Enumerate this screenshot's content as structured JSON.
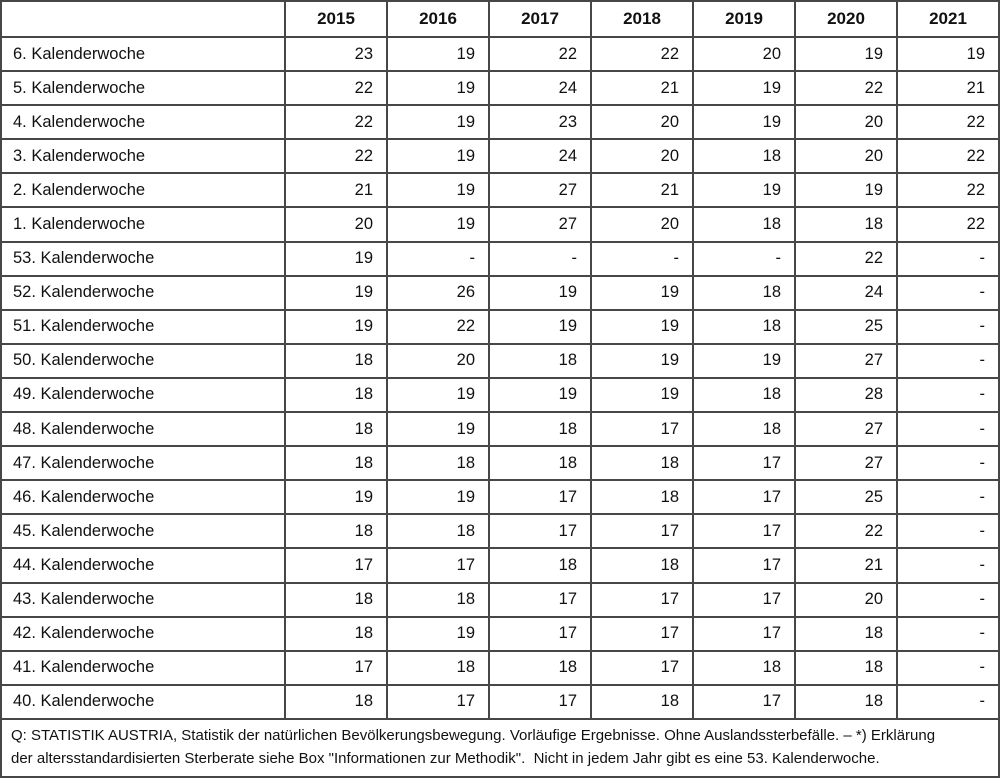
{
  "chart_data": {
    "type": "table",
    "title": "",
    "corner_label": "",
    "columns": [
      "2015",
      "2016",
      "2017",
      "2018",
      "2019",
      "2020",
      "2021"
    ],
    "rows": [
      {
        "label": "6. Kalenderwoche",
        "values": [
          "23",
          "19",
          "22",
          "22",
          "20",
          "19",
          "19"
        ]
      },
      {
        "label": "5. Kalenderwoche",
        "values": [
          "22",
          "19",
          "24",
          "21",
          "19",
          "22",
          "21"
        ]
      },
      {
        "label": "4. Kalenderwoche",
        "values": [
          "22",
          "19",
          "23",
          "20",
          "19",
          "20",
          "22"
        ]
      },
      {
        "label": "3. Kalenderwoche",
        "values": [
          "22",
          "19",
          "24",
          "20",
          "18",
          "20",
          "22"
        ]
      },
      {
        "label": "2. Kalenderwoche",
        "values": [
          "21",
          "19",
          "27",
          "21",
          "19",
          "19",
          "22"
        ]
      },
      {
        "label": "1. Kalenderwoche",
        "values": [
          "20",
          "19",
          "27",
          "20",
          "18",
          "18",
          "22"
        ]
      },
      {
        "label": "53. Kalenderwoche",
        "values": [
          "19",
          "-",
          "-",
          "-",
          "-",
          "22",
          "-"
        ]
      },
      {
        "label": "52. Kalenderwoche",
        "values": [
          "19",
          "26",
          "19",
          "19",
          "18",
          "24",
          "-"
        ]
      },
      {
        "label": "51. Kalenderwoche",
        "values": [
          "19",
          "22",
          "19",
          "19",
          "18",
          "25",
          "-"
        ]
      },
      {
        "label": "50. Kalenderwoche",
        "values": [
          "18",
          "20",
          "18",
          "19",
          "19",
          "27",
          "-"
        ]
      },
      {
        "label": "49. Kalenderwoche",
        "values": [
          "18",
          "19",
          "19",
          "19",
          "18",
          "28",
          "-"
        ]
      },
      {
        "label": "48. Kalenderwoche",
        "values": [
          "18",
          "19",
          "18",
          "17",
          "18",
          "27",
          "-"
        ]
      },
      {
        "label": "47. Kalenderwoche",
        "values": [
          "18",
          "18",
          "18",
          "18",
          "17",
          "27",
          "-"
        ]
      },
      {
        "label": "46. Kalenderwoche",
        "values": [
          "19",
          "19",
          "17",
          "18",
          "17",
          "25",
          "-"
        ]
      },
      {
        "label": "45. Kalenderwoche",
        "values": [
          "18",
          "18",
          "17",
          "17",
          "17",
          "22",
          "-"
        ]
      },
      {
        "label": "44. Kalenderwoche",
        "values": [
          "17",
          "17",
          "18",
          "18",
          "17",
          "21",
          "-"
        ]
      },
      {
        "label": "43. Kalenderwoche",
        "values": [
          "18",
          "18",
          "17",
          "17",
          "17",
          "20",
          "-"
        ]
      },
      {
        "label": "42. Kalenderwoche",
        "values": [
          "18",
          "19",
          "17",
          "17",
          "17",
          "18",
          "-"
        ]
      },
      {
        "label": "41. Kalenderwoche",
        "values": [
          "17",
          "18",
          "18",
          "17",
          "18",
          "18",
          "-"
        ]
      },
      {
        "label": "40. Kalenderwoche",
        "values": [
          "18",
          "17",
          "17",
          "18",
          "17",
          "18",
          "-"
        ]
      }
    ],
    "layout_hints": {
      "row_labels_column_first": true,
      "values_right_aligned": true,
      "grid": true
    }
  },
  "footer": {
    "text": "Q: STATISTIK AUSTRIA, Statistik der natürlichen Bevölkerungsbewegung. Vorläufige Ergebnisse. Ohne Auslandssterbefälle. – *) Erklärung\nder altersstandardisierten Sterberate siehe Box \"Informationen zur Methodik\".  Nicht in jedem Jahr gibt es eine 53. Kalenderwoche."
  },
  "colors": {
    "border": "#474747",
    "text": "#111111",
    "background": "#ffffff"
  }
}
